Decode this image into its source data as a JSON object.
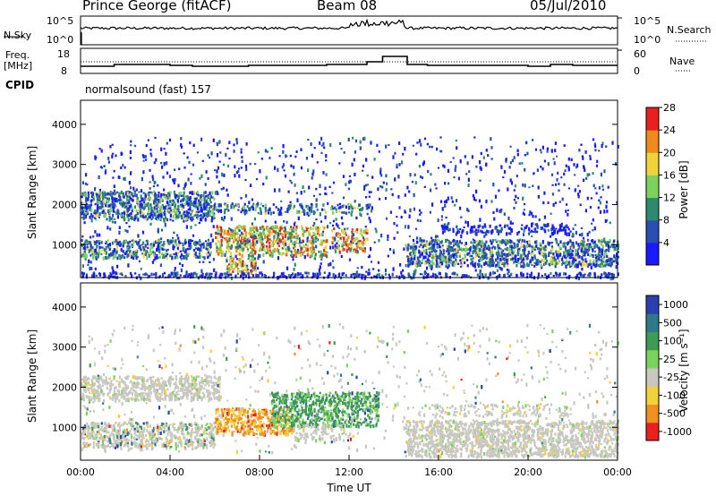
{
  "header": {
    "station": "Prince George (fitACF)",
    "beam": "Beam 08",
    "date": "05/Jul/2010"
  },
  "top_panels": {
    "nsky_label": "N.Sky",
    "nsky_ticks": [
      "10^5",
      "10^0"
    ],
    "nsearch_label": "N.Search",
    "nsearch_ticks": [
      "10^5",
      "10^0"
    ],
    "freq_label": "Freq.",
    "freq_unit": "[MHz]",
    "freq_ticks": [
      "18",
      "8"
    ],
    "nave_label": "Nave",
    "nave_ticks": [
      "60",
      "0"
    ],
    "cpid_label": "CPID",
    "cpid_value": "normalsound (fast) 157"
  },
  "chart_data": [
    {
      "type": "heatmap",
      "name": "power",
      "ylabel": "Slant Range [km]",
      "ylim": [
        180,
        4600
      ],
      "yticks": [
        "1000",
        "2000",
        "3000",
        "4000"
      ],
      "colorbar_label": "Power [dB]",
      "colorbar_ticks": [
        "4",
        "8",
        "12",
        "16",
        "20",
        "24",
        "28"
      ],
      "colorbar_colors": [
        "#1a1aff",
        "#2a4fb0",
        "#2e8a6e",
        "#7bd35e",
        "#f0d33a",
        "#f08a1a",
        "#e82020"
      ]
    },
    {
      "type": "heatmap",
      "name": "velocity",
      "ylabel": "Slant Range [km]",
      "xlabel": "Time UT",
      "ylim": [
        180,
        4600
      ],
      "yticks": [
        "1000",
        "2000",
        "3000",
        "4000"
      ],
      "xticks": [
        "00:00",
        "04:00",
        "08:00",
        "12:00",
        "16:00",
        "20:00",
        "00:00"
      ],
      "colorbar_label": "Velocity [m s⁻¹]",
      "colorbar_ticks": [
        "1000",
        "500",
        "100",
        "25",
        "-25",
        "-100",
        "-500",
        "-1000"
      ],
      "colorbar_colors": [
        "#2a3fb0",
        "#2f7a8a",
        "#3f9a55",
        "#7bd35e",
        "#c8c8c0",
        "#f0d33a",
        "#f09020",
        "#e82020"
      ]
    }
  ]
}
